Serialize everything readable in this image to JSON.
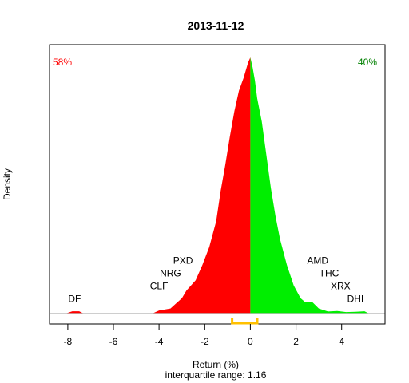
{
  "chart_data": {
    "type": "area",
    "title": "2013-11-12",
    "xlabel": "Return (%)",
    "ylabel": "Density",
    "subtitle": "interquartile range: 1.16",
    "xlim": [
      -8.8,
      5.9
    ],
    "ylim": [
      0,
      1.0
    ],
    "x_ticks": [
      -8,
      -6,
      -4,
      -2,
      0,
      2,
      4
    ],
    "x_tick_labels": [
      "-8",
      "-6",
      "-4",
      "-2",
      "0",
      "2",
      "4"
    ],
    "split_at": 0,
    "negative_pct_label": "58%",
    "positive_pct_label": "40%",
    "colors": {
      "negative": "#ff0000",
      "positive": "#00ee00",
      "iqr": "#ffc000",
      "baseline": "#bebebe"
    },
    "iqr": [
      -0.8,
      0.3
    ],
    "density": {
      "x": [
        -8.1,
        -7.8,
        -7.5,
        -7.3,
        -4.3,
        -4.0,
        -3.5,
        -3.0,
        -2.8,
        -2.4,
        -2.1,
        -1.8,
        -1.5,
        -1.3,
        -1.1,
        -0.9,
        -0.7,
        -0.5,
        -0.3,
        -0.1,
        0.0,
        0.1,
        0.2,
        0.3,
        0.5,
        0.7,
        0.9,
        1.1,
        1.3,
        1.6,
        1.9,
        2.2,
        2.4,
        2.7,
        3.0,
        3.4,
        3.8,
        4.2,
        4.6,
        5.0,
        5.2
      ],
      "y": [
        0.0,
        0.009,
        0.009,
        0.0,
        0.0,
        0.012,
        0.02,
        0.06,
        0.09,
        0.13,
        0.19,
        0.26,
        0.36,
        0.48,
        0.58,
        0.69,
        0.79,
        0.87,
        0.92,
        0.98,
        1.0,
        0.96,
        0.91,
        0.84,
        0.75,
        0.62,
        0.49,
        0.38,
        0.29,
        0.19,
        0.11,
        0.06,
        0.045,
        0.046,
        0.02,
        0.008,
        0.01,
        0.006,
        0.007,
        0.009,
        0.0
      ]
    },
    "annotations": [
      {
        "text": "DF",
        "x": -7.7,
        "y": 0.045
      },
      {
        "text": "CLF",
        "x": -4.0,
        "y": 0.095
      },
      {
        "text": "NRG",
        "x": -3.5,
        "y": 0.145
      },
      {
        "text": "PXD",
        "x": -2.95,
        "y": 0.195
      },
      {
        "text": "AMD",
        "x": 2.95,
        "y": 0.195
      },
      {
        "text": "THC",
        "x": 3.45,
        "y": 0.145
      },
      {
        "text": "XRX",
        "x": 3.95,
        "y": 0.095
      },
      {
        "text": "DHI",
        "x": 4.6,
        "y": 0.045
      }
    ]
  }
}
